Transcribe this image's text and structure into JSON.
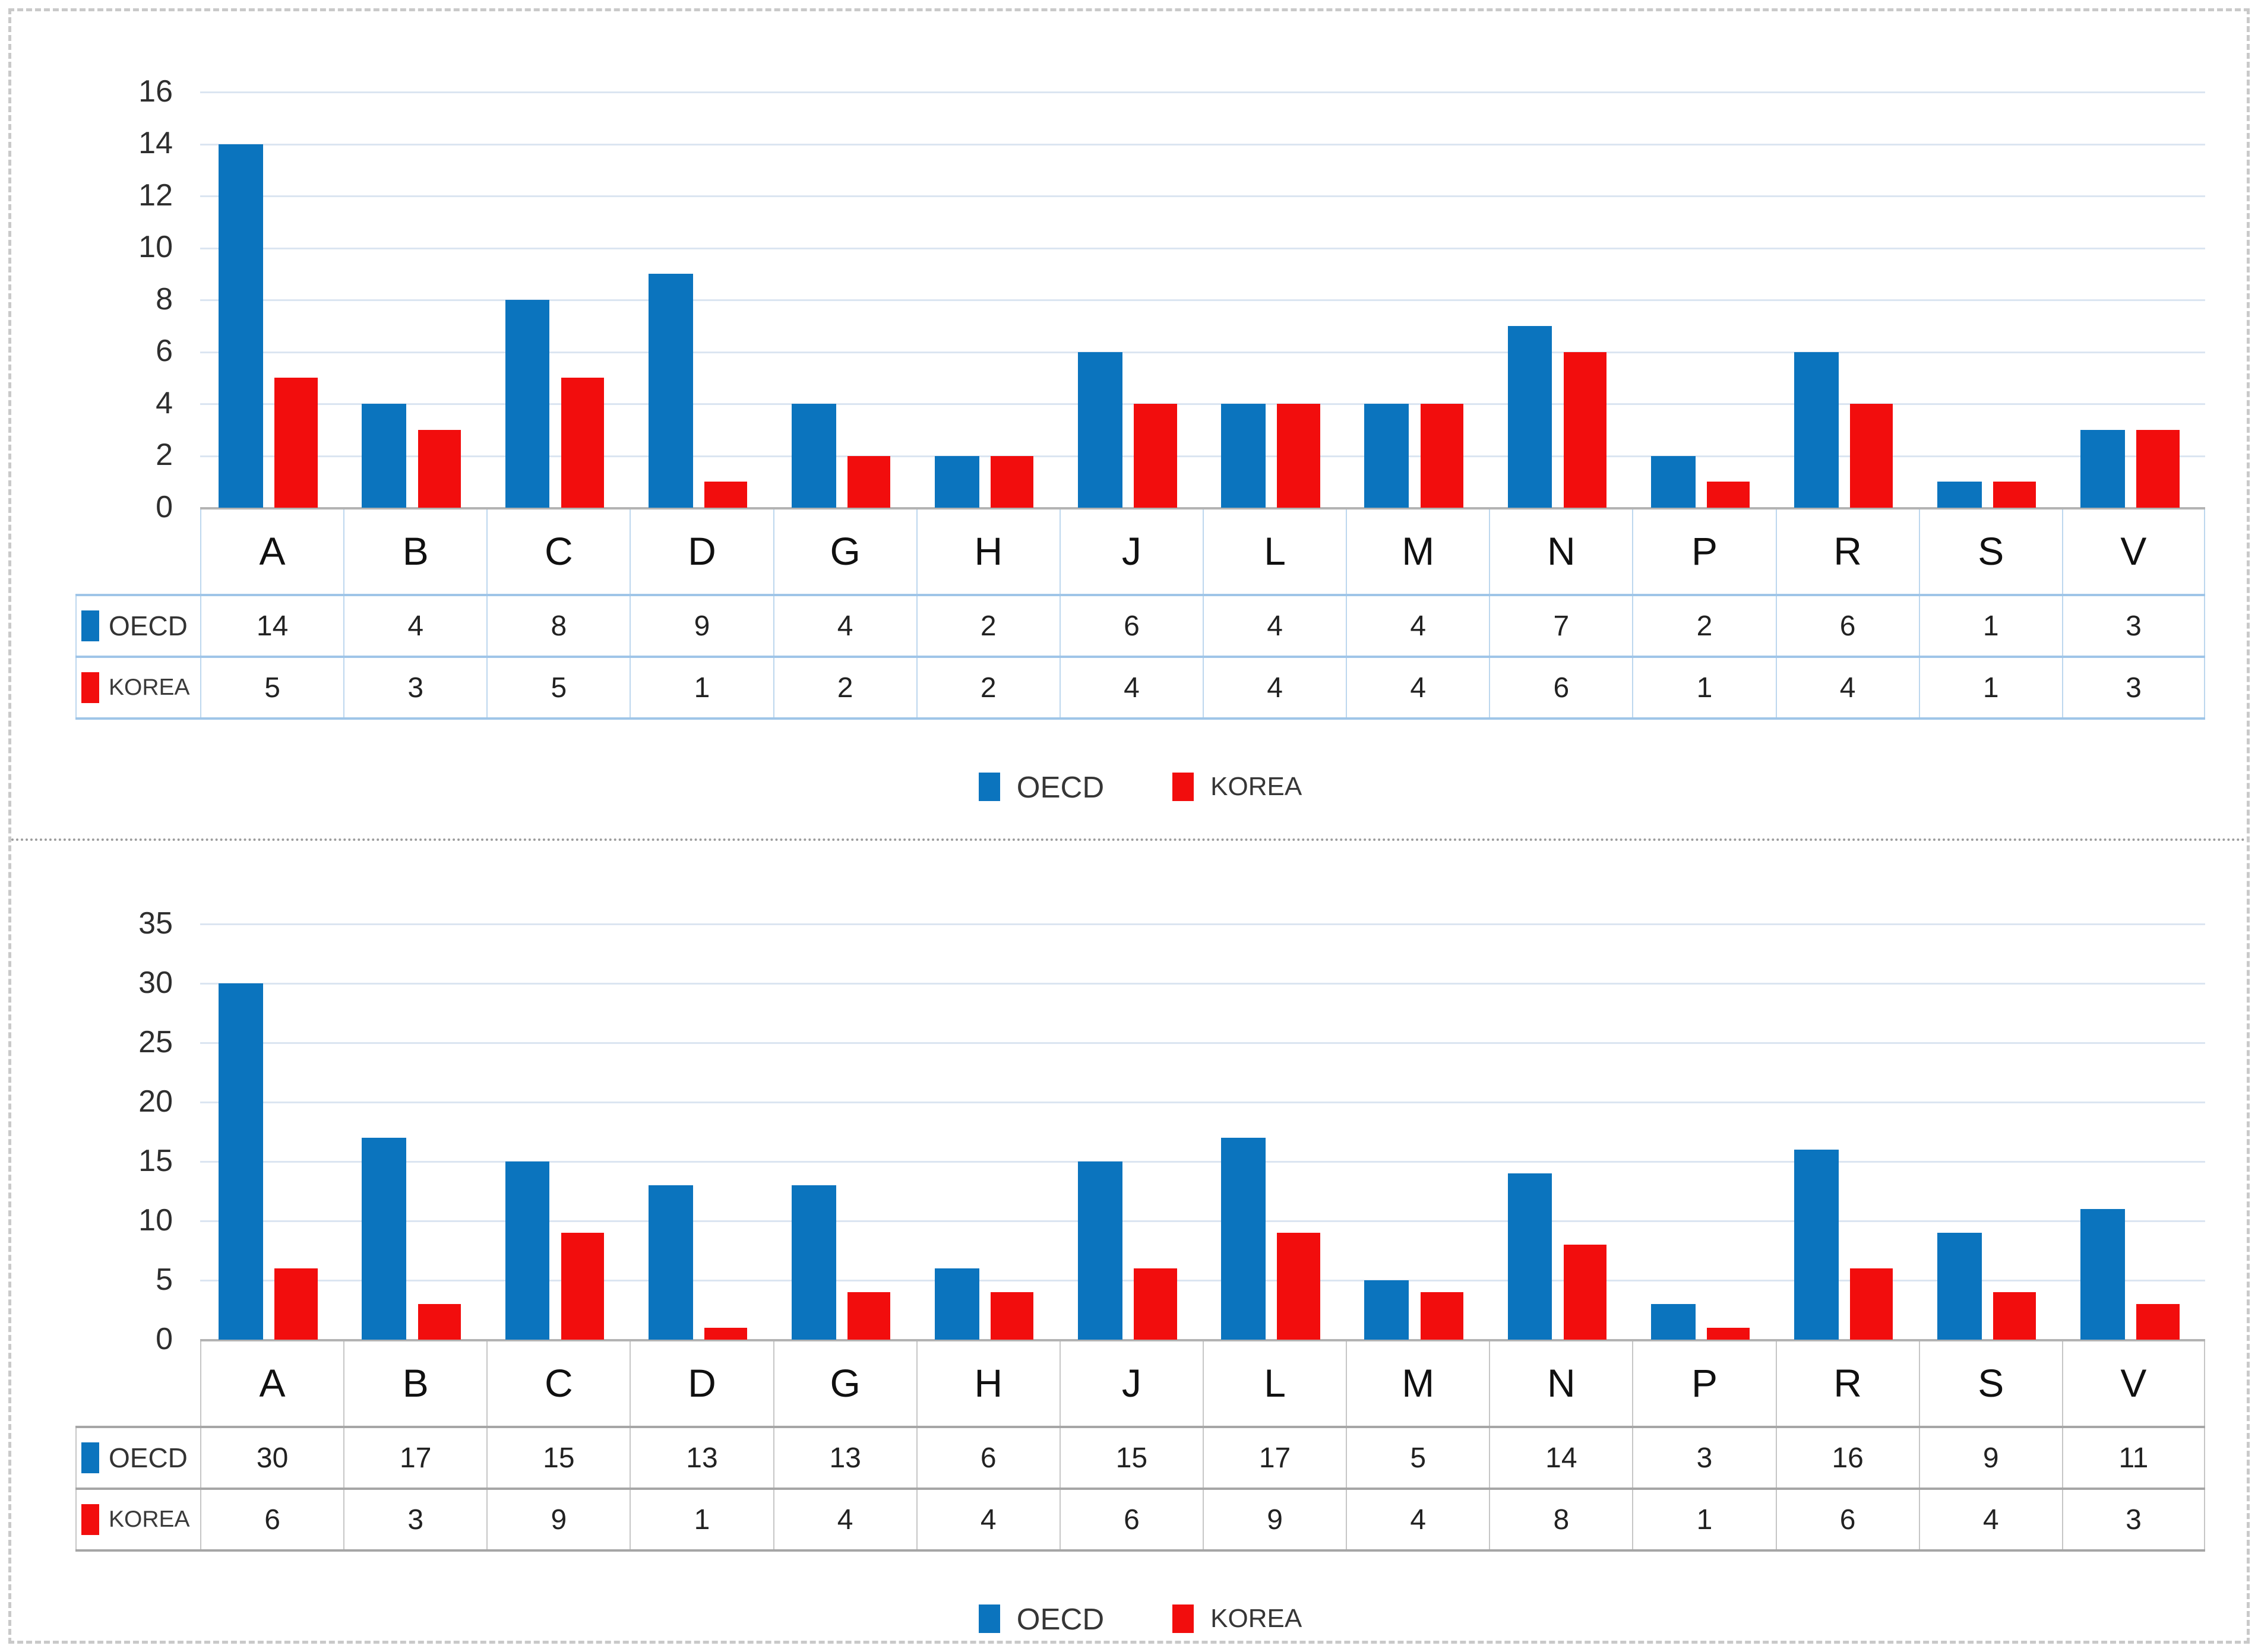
{
  "figure": {
    "series_names": [
      "OECD",
      "KOREA"
    ],
    "colors": {
      "oecd_blue": "#0b74be",
      "korea_red": "#f20d0d"
    }
  },
  "chart_data": [
    {
      "type": "bar",
      "title": "",
      "xlabel": "",
      "ylabel": "",
      "categories": [
        "A",
        "B",
        "C",
        "D",
        "G",
        "H",
        "J",
        "L",
        "M",
        "N",
        "P",
        "R",
        "S",
        "V"
      ],
      "series": [
        {
          "name": "OECD",
          "color": "#0b74be",
          "values": [
            14,
            4,
            8,
            9,
            4,
            2,
            6,
            4,
            4,
            7,
            2,
            6,
            1,
            3
          ]
        },
        {
          "name": "KOREA",
          "color": "#f20d0d",
          "values": [
            5,
            3,
            5,
            1,
            2,
            2,
            4,
            4,
            4,
            6,
            1,
            4,
            1,
            3
          ]
        }
      ],
      "ylim": [
        0,
        16
      ],
      "yticks": [
        0,
        2,
        4,
        6,
        8,
        10,
        12,
        14,
        16
      ],
      "grid": true,
      "data_table_shown": true,
      "legend": [
        "OECD",
        "KOREA"
      ],
      "legend_position": "bottom",
      "table_border_color": "#bdd7ee",
      "table_rule_color": "#9fc5e8"
    },
    {
      "type": "bar",
      "title": "",
      "xlabel": "",
      "ylabel": "",
      "categories": [
        "A",
        "B",
        "C",
        "D",
        "G",
        "H",
        "J",
        "L",
        "M",
        "N",
        "P",
        "R",
        "S",
        "V"
      ],
      "series": [
        {
          "name": "OECD",
          "color": "#0b74be",
          "values": [
            30,
            17,
            15,
            13,
            13,
            6,
            15,
            17,
            5,
            14,
            3,
            16,
            9,
            11
          ]
        },
        {
          "name": "KOREA",
          "color": "#f20d0d",
          "values": [
            6,
            3,
            9,
            1,
            4,
            4,
            6,
            9,
            4,
            8,
            1,
            6,
            4,
            3
          ]
        }
      ],
      "ylim": [
        0,
        35
      ],
      "yticks": [
        0,
        5,
        10,
        15,
        20,
        25,
        30,
        35
      ],
      "grid": true,
      "data_table_shown": true,
      "legend": [
        "OECD",
        "KOREA"
      ],
      "legend_position": "bottom",
      "table_border_color": "#c6c6c6",
      "table_rule_color": "#a6a6a6"
    }
  ]
}
